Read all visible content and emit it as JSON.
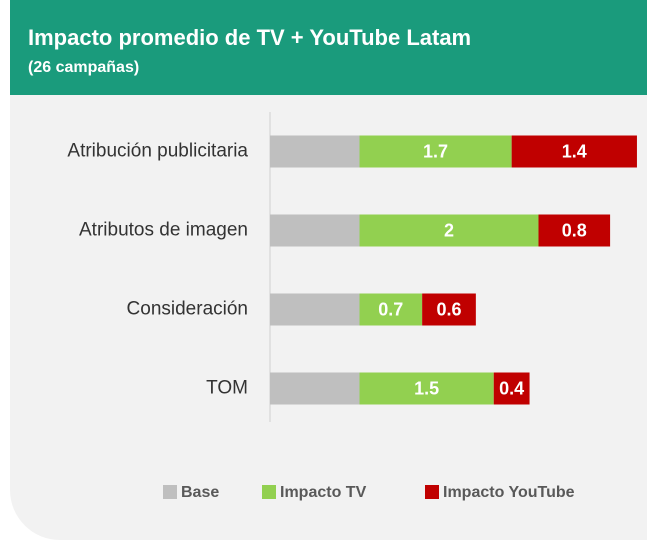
{
  "chart_data": {
    "type": "bar",
    "orientation": "horizontal",
    "stacked": true,
    "title": "Impacto promedio de TV + YouTube Latam",
    "subtitle": "(26 campañas)",
    "categories": [
      "Atribución publicitaria",
      "Atributos de imagen",
      "Consideración",
      "TOM"
    ],
    "series": [
      {
        "name": "Base",
        "color": "#bfbfbf",
        "values": [
          1,
          1,
          1,
          1
        ],
        "data_labels": false
      },
      {
        "name": "Impacto TV",
        "color": "#92d050",
        "values": [
          1.7,
          2,
          0.7,
          1.5
        ],
        "data_labels": true
      },
      {
        "name": "Impacto YouTube",
        "color": "#c00000",
        "values": [
          1.4,
          0.8,
          0.6,
          0.4
        ],
        "data_labels": true
      }
    ],
    "legend": "bottom"
  }
}
